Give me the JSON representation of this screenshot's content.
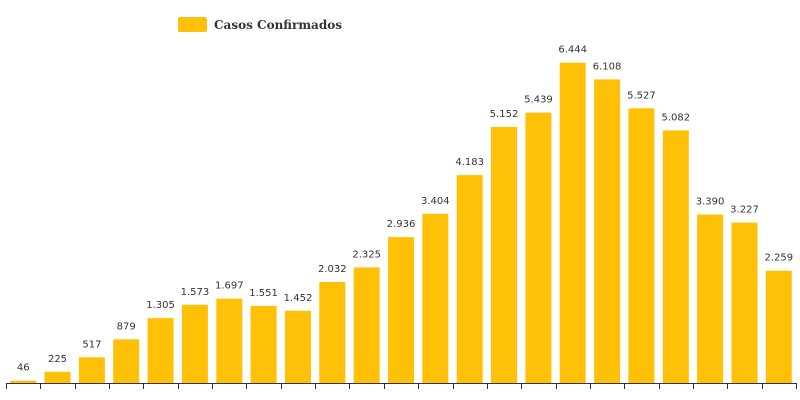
{
  "chart_data": {
    "type": "bar",
    "title": "",
    "xlabel": "",
    "ylabel": "",
    "grid": false,
    "legend_position": "top-left",
    "ylim": [
      0,
      6800
    ],
    "series": [
      {
        "name": "Casos Confirmados",
        "color": "#FFC107",
        "values": [
          46,
          225,
          517,
          879,
          1305,
          1573,
          1697,
          1551,
          1452,
          2032,
          2325,
          2936,
          3404,
          4183,
          5152,
          5439,
          6444,
          6108,
          5527,
          5082,
          3390,
          3227,
          2259
        ],
        "value_labels": [
          "46",
          "225",
          "517",
          "879",
          "1.305",
          "1.573",
          "1.697",
          "1.551",
          "1.452",
          "2.032",
          "2.325",
          "2.936",
          "3.404",
          "4.183",
          "5.152",
          "5.439",
          "6.444",
          "6.108",
          "5.527",
          "5.082",
          "3.390",
          "3.227",
          "2.259"
        ]
      }
    ]
  },
  "legend": {
    "label": "Casos Confirmados"
  },
  "colors": {
    "bar": "#FFC107",
    "text": "#333333",
    "axis": "#333333"
  }
}
